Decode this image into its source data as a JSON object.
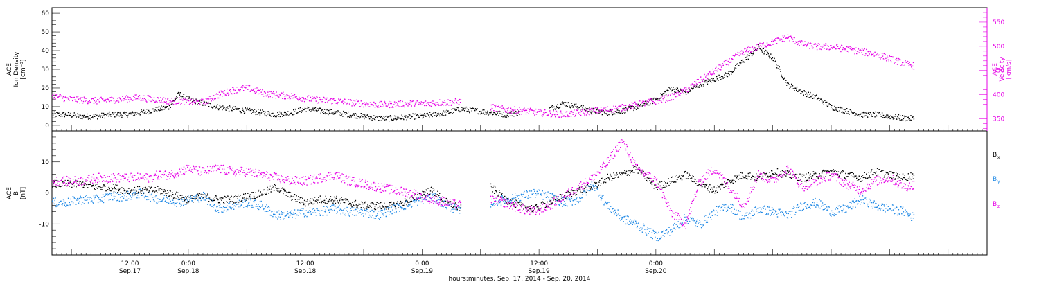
{
  "chart_data": [
    {
      "type": "scatter",
      "panel": "top",
      "ylabel_left": [
        "ACE",
        "Ion Density",
        "[cm⁻³]"
      ],
      "ylabel_right": [
        "ACE",
        "Velocity",
        "[km/s]"
      ],
      "ylim_left": [
        -3,
        63
      ],
      "yticks_left": [
        0,
        10,
        20,
        30,
        40,
        50,
        60
      ],
      "ylim_right": [
        325,
        580
      ],
      "yticks_right": [
        350,
        400,
        450,
        500,
        550
      ],
      "grid": false,
      "series": [
        {
          "axis": "left",
          "color": "#000000",
          "x": [
            0,
            3,
            6,
            9,
            12,
            15,
            18,
            20,
            22,
            24,
            26,
            28,
            31,
            34,
            37,
            40,
            43,
            46,
            49,
            52,
            55,
            58,
            61,
            64,
            67,
            70,
            74,
            76,
            78,
            81,
            84,
            87,
            90,
            93,
            96,
            99,
            102,
            105,
            108,
            111,
            114,
            117,
            120,
            124,
            127,
            130,
            133,
            136,
            139,
            142,
            145,
            148,
            151,
            154,
            157,
            160,
            163,
            166,
            169,
            172,
            175,
            177
          ],
          "y": [
            6,
            6,
            5,
            5,
            6,
            6,
            7,
            8,
            9,
            10,
            17,
            14,
            12,
            10,
            9,
            8,
            7,
            6,
            7,
            9,
            8,
            7,
            6,
            5,
            4,
            4,
            5,
            5,
            6,
            7,
            9,
            8,
            7,
            6,
            7,
            null,
            9,
            12,
            10,
            8,
            7,
            8,
            10,
            14,
            20,
            18,
            22,
            25,
            28,
            35,
            42,
            36,
            22,
            18,
            15,
            10,
            8,
            6,
            6,
            5,
            4,
            4
          ]
        },
        {
          "axis": "right",
          "color": "#e600e6",
          "x": [
            0,
            3,
            6,
            9,
            12,
            15,
            18,
            20,
            22,
            24,
            26,
            28,
            31,
            34,
            37,
            40,
            43,
            46,
            49,
            52,
            55,
            58,
            61,
            64,
            67,
            70,
            74,
            76,
            78,
            81,
            84,
            87,
            90,
            93,
            96,
            99,
            102,
            105,
            108,
            111,
            114,
            117,
            120,
            124,
            127,
            130,
            133,
            136,
            139,
            142,
            145,
            148,
            151,
            154,
            157,
            160,
            163,
            166,
            169,
            172,
            175,
            177
          ],
          "y": [
            400,
            392,
            390,
            388,
            390,
            392,
            395,
            392,
            390,
            388,
            388,
            386,
            385,
            400,
            410,
            415,
            405,
            400,
            398,
            393,
            390,
            388,
            385,
            382,
            380,
            381,
            383,
            382,
            384,
            385,
            386,
            null,
            375,
            370,
            368,
            365,
            362,
            360,
            363,
            367,
            370,
            374,
            380,
            388,
            395,
            410,
            430,
            450,
            470,
            490,
            500,
            510,
            520,
            505,
            500,
            500,
            495,
            490,
            485,
            475,
            465,
            460
          ]
        }
      ]
    },
    {
      "type": "scatter",
      "panel": "bottom",
      "ylabel": [
        "ACE",
        "B",
        "[nT]"
      ],
      "ylim": [
        -20,
        20
      ],
      "yticks": [
        -10,
        0,
        10
      ],
      "zero_line": true,
      "xlabel": "hours:minutes, Sep. 17, 2014 - Sep. 20, 2014",
      "xlim": [
        0,
        192
      ],
      "grid": false,
      "xticks": [
        {
          "x": 16,
          "time": "12:00",
          "date": "Sep.17"
        },
        {
          "x": 28,
          "time": "0:00",
          "date": "Sep.18"
        },
        {
          "x": 52,
          "time": "12:00",
          "date": "Sep.18"
        },
        {
          "x": 76,
          "time": "0:00",
          "date": "Sep.19"
        },
        {
          "x": 100,
          "time": "12:00",
          "date": "Sep.19"
        },
        {
          "x": 124,
          "time": "0:00",
          "date": "Sep.20"
        }
      ],
      "legend": [
        {
          "label": "B",
          "sub": "x",
          "color": "#000000"
        },
        {
          "label": "B",
          "sub": "y",
          "color": "#1e88e5"
        },
        {
          "label": "B",
          "sub": "z",
          "color": "#e600e6"
        }
      ],
      "series": [
        {
          "name": "Bx",
          "color": "#000000",
          "x": [
            0,
            3,
            6,
            9,
            12,
            15,
            18,
            20,
            22,
            24,
            26,
            28,
            31,
            34,
            37,
            40,
            43,
            46,
            49,
            52,
            55,
            58,
            61,
            64,
            67,
            70,
            74,
            76,
            78,
            81,
            84,
            87,
            90,
            93,
            96,
            99,
            102,
            105,
            108,
            111,
            114,
            117,
            120,
            124,
            127,
            130,
            133,
            136,
            139,
            142,
            145,
            148,
            151,
            154,
            157,
            160,
            163,
            166,
            169,
            172,
            175,
            177
          ],
          "y": [
            3,
            3,
            3,
            2,
            2,
            1,
            1,
            1,
            1,
            0,
            -1,
            -2,
            -1,
            -2,
            -2,
            -1,
            0,
            2,
            -1,
            -3,
            -2,
            -2,
            -3,
            -4,
            -4,
            -4,
            -2,
            0,
            1,
            -3,
            -5,
            null,
            2,
            -2,
            -4,
            -5,
            -3,
            -1,
            1,
            2,
            5,
            6,
            8,
            2,
            4,
            6,
            3,
            1,
            4,
            6,
            5,
            7,
            6,
            5,
            6,
            7,
            6,
            5,
            7,
            6,
            5,
            6
          ]
        },
        {
          "name": "By",
          "color": "#1e88e5",
          "x": [
            0,
            3,
            6,
            9,
            12,
            15,
            18,
            20,
            22,
            24,
            26,
            28,
            31,
            34,
            37,
            40,
            43,
            46,
            49,
            52,
            55,
            58,
            61,
            64,
            67,
            70,
            74,
            76,
            78,
            81,
            84,
            87,
            90,
            93,
            96,
            99,
            102,
            105,
            108,
            111,
            114,
            117,
            120,
            124,
            127,
            130,
            133,
            136,
            139,
            142,
            145,
            148,
            151,
            154,
            157,
            160,
            163,
            166,
            169,
            172,
            175,
            177
          ],
          "y": [
            -3,
            -3,
            -2,
            -2,
            -1,
            -1,
            0,
            -1,
            -2,
            -2,
            -3,
            -2,
            -1,
            -5,
            -4,
            -3,
            -4,
            -7,
            -7,
            -6,
            -6,
            -5,
            -6,
            -6,
            -7,
            -5,
            -3,
            -2,
            -1,
            -4,
            -6,
            null,
            -3,
            -2,
            -1,
            0,
            -1,
            -3,
            -2,
            3,
            -4,
            -8,
            -10,
            -14,
            -12,
            -8,
            -10,
            -6,
            -4,
            -8,
            -5,
            -6,
            -7,
            -4,
            -3,
            -6,
            -5,
            -2,
            -4,
            -5,
            -6,
            -8
          ]
        },
        {
          "name": "Bz",
          "color": "#e600e6",
          "x": [
            0,
            3,
            6,
            9,
            12,
            15,
            18,
            20,
            22,
            24,
            26,
            28,
            31,
            34,
            37,
            40,
            43,
            46,
            49,
            52,
            55,
            58,
            61,
            64,
            67,
            70,
            74,
            76,
            78,
            81,
            84,
            87,
            90,
            93,
            96,
            99,
            102,
            105,
            108,
            111,
            114,
            117,
            120,
            124,
            127,
            130,
            133,
            136,
            139,
            142,
            145,
            148,
            151,
            154,
            157,
            160,
            163,
            166,
            169,
            172,
            175,
            177
          ],
          "y": [
            4,
            4,
            4,
            5,
            5,
            5,
            5,
            5,
            6,
            6,
            7,
            8,
            7,
            8,
            7,
            7,
            6,
            5,
            4,
            4,
            5,
            6,
            4,
            3,
            2,
            1,
            0,
            -1,
            -2,
            -3,
            -4,
            null,
            -2,
            -3,
            -5,
            -6,
            -4,
            -1,
            2,
            5,
            10,
            17,
            8,
            4,
            -6,
            -10,
            4,
            8,
            2,
            -4,
            6,
            4,
            8,
            2,
            4,
            6,
            3,
            1,
            4,
            5,
            2,
            3
          ]
        }
      ]
    }
  ]
}
